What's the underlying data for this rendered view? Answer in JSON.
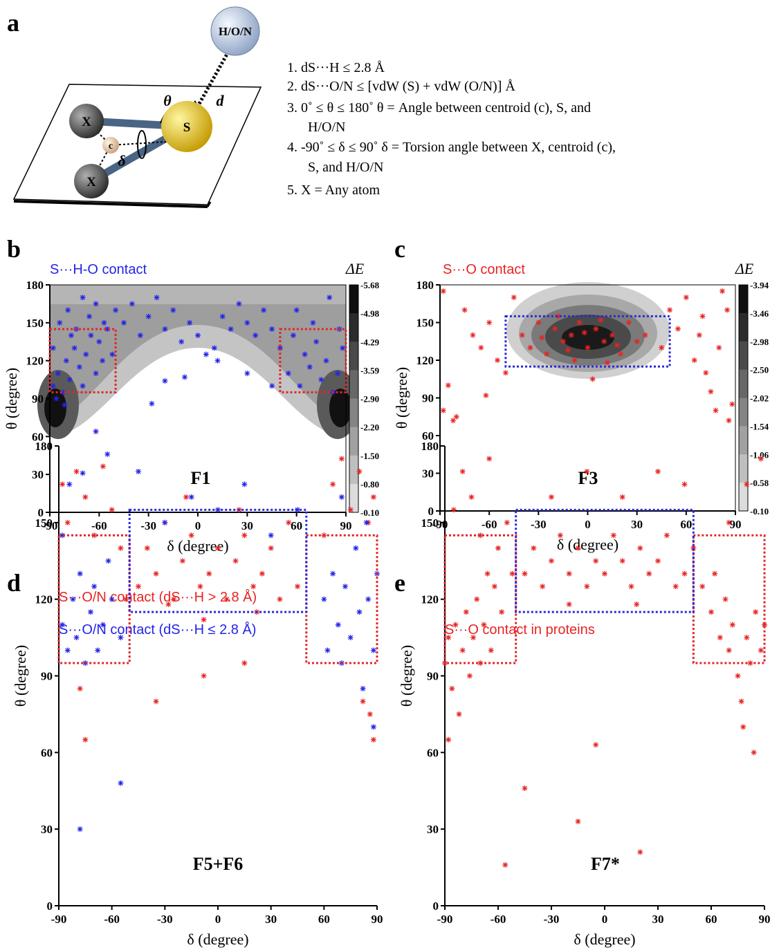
{
  "diagram": {
    "panel_label": "a",
    "atoms": [
      "H/O/N",
      "X",
      "X",
      "c",
      "S"
    ],
    "symbols": [
      "θ",
      "d",
      "δ"
    ],
    "criteria": [
      "1. dS···H ≤ 2.8 Å",
      "2. dS···O/N ≤ [vdW (S) + vdW (O/N)] Å",
      "3. 0˚ ≤ θ ≤ 180˚  θ = Angle between  centroid (c),  S, and",
      "H/O/N",
      "4. -90˚ ≤ δ ≤ 90˚  δ = Torsion angle  between X, centroid (c),",
      "S, and  H/O/N",
      "5. X = Any atom"
    ]
  },
  "chart_data": [
    {
      "type": "scatter",
      "panel_label": "b",
      "annotation": "F1",
      "xlabel": "δ (degree)",
      "ylabel": "θ (degree)",
      "xlim": [
        -90,
        90
      ],
      "ylim": [
        0,
        180
      ],
      "xticks": [
        -90,
        -60,
        -30,
        0,
        30,
        60,
        90
      ],
      "yticks": [
        0,
        30,
        60,
        90,
        120,
        150,
        180
      ],
      "colorbar": {
        "title": "ΔE",
        "levels": [
          -5.68,
          -4.98,
          -4.29,
          -3.59,
          {
            "value": -2.9,
            "label": "-2.90"
          },
          {
            "value": -2.2,
            "label": "-2.20"
          },
          {
            "value": -1.5,
            "label": "-1.50"
          },
          {
            "value": -0.8,
            "label": "-0.80"
          },
          {
            "value": -0.1,
            "label": "-0.10"
          }
        ]
      },
      "regions": [
        {
          "xlim": [
            -90,
            -50
          ],
          "ylim": [
            95,
            145
          ],
          "color": "#e0262b"
        },
        {
          "xlim": [
            50,
            90
          ],
          "ylim": [
            95,
            145
          ],
          "color": "#e0262b"
        }
      ],
      "series": [
        {
          "name": "S···H-O contact",
          "color": "#2323e8",
          "x": [
            -88,
            -85,
            -82,
            -80,
            -78,
            -75,
            -72,
            -70,
            -68,
            -65,
            -62,
            -60,
            -58,
            -55,
            -52,
            -88,
            -84,
            -79,
            -74,
            -70,
            -66,
            -62,
            -57,
            -86,
            -81,
            -77,
            -50,
            -45,
            -40,
            -35,
            -30,
            -25,
            -20,
            -15,
            -10,
            -5,
            0,
            5,
            10,
            15,
            20,
            25,
            30,
            35,
            40,
            45,
            50,
            55,
            58,
            62,
            65,
            68,
            72,
            75,
            78,
            82,
            85,
            88,
            60,
            70,
            80,
            86,
            -20,
            -8,
            12,
            -70,
            -62,
            -55,
            -28,
            30,
            45
          ],
          "values": [
            100,
            110,
            95,
            120,
            105,
            130,
            115,
            100,
            125,
            140,
            110,
            135,
            120,
            145,
            125,
            130,
            150,
            160,
            145,
            170,
            155,
            165,
            150,
            90,
            85,
            140,
            160,
            150,
            165,
            140,
            155,
            170,
            145,
            160,
            135,
            150,
            140,
            125,
            130,
            155,
            145,
            165,
            150,
            140,
            160,
            145,
            130,
            110,
            140,
            100,
            125,
            115,
            135,
            105,
            120,
            95,
            110,
            130,
            160,
            150,
            170,
            145,
            104,
            107,
            120,
            31,
            64,
            46,
            86,
            110,
            100
          ]
        }
      ]
    },
    {
      "type": "scatter",
      "panel_label": "c",
      "annotation": "F3",
      "xlabel": "δ (degree)",
      "ylabel": "θ (degree)",
      "xlim": [
        -90,
        90
      ],
      "ylim": [
        0,
        180
      ],
      "xticks": [
        -90,
        -60,
        -30,
        0,
        30,
        60,
        90
      ],
      "yticks": [
        0,
        30,
        60,
        90,
        120,
        150,
        180
      ],
      "colorbar": {
        "title": "ΔE",
        "levels": [
          -3.94,
          -3.46,
          -2.98,
          {
            "value": -2.5,
            "label": "-2.50"
          },
          -2.02,
          -1.54,
          -1.06,
          -0.58,
          {
            "value": -0.1,
            "label": "-0.10"
          }
        ]
      },
      "regions": [
        {
          "xlim": [
            -50,
            50
          ],
          "ylim": [
            115,
            155
          ],
          "color": "#2a2ad6"
        }
      ],
      "series": [
        {
          "name": "S···O contact",
          "color": "#e82323",
          "x": [
            -40,
            -35,
            -30,
            -25,
            -20,
            -15,
            -10,
            -5,
            0,
            5,
            10,
            15,
            20,
            25,
            30,
            35,
            -28,
            -12,
            -2,
            8,
            18,
            -18,
            12,
            -8,
            3,
            -88,
            -85,
            -82,
            -80,
            -75,
            -70,
            -65,
            -60,
            -62,
            -55,
            -50,
            -45,
            45,
            50,
            55,
            60,
            65,
            70,
            72,
            75,
            78,
            80,
            82,
            85,
            88,
            86,
            68,
            -88
          ],
          "values": [
            140,
            130,
            150,
            125,
            145,
            135,
            140,
            150,
            130,
            145,
            135,
            140,
            125,
            150,
            135,
            140,
            138,
            128,
            142,
            152,
            132,
            155,
            118,
            120,
            105,
            175,
            100,
            72,
            75,
            160,
            140,
            130,
            150,
            92,
            120,
            110,
            170,
            130,
            160,
            145,
            170,
            120,
            155,
            110,
            95,
            80,
            130,
            175,
            160,
            85,
            72,
            140,
            80
          ]
        }
      ]
    },
    {
      "type": "scatter",
      "panel_label": "d",
      "annotation": "F5+F6",
      "xlabel": "δ (degree)",
      "ylabel": "θ (degree)",
      "xlim": [
        -90,
        90
      ],
      "ylim": [
        0,
        180
      ],
      "xticks": [
        -90,
        -60,
        -30,
        0,
        30,
        60,
        90
      ],
      "yticks": [
        0,
        30,
        60,
        90,
        120,
        150,
        180
      ],
      "regions": [
        {
          "xlim": [
            -90,
            -50
          ],
          "ylim": [
            95,
            145
          ],
          "color": "#e0262b"
        },
        {
          "xlim": [
            50,
            90
          ],
          "ylim": [
            95,
            145
          ],
          "color": "#e0262b"
        },
        {
          "xlim": [
            -50,
            50
          ],
          "ylim": [
            115,
            155
          ],
          "color": "#2a2ad6"
        }
      ],
      "series": [
        {
          "name": "S···O/N contact (dS···H > 2.8 Å)",
          "color": "#e82323",
          "x": [
            -45,
            -40,
            -35,
            -30,
            -25,
            -20,
            -15,
            -10,
            -5,
            0,
            5,
            10,
            15,
            20,
            25,
            30,
            35,
            40,
            45,
            -28,
            -8,
            12,
            22,
            -18,
            -88,
            -85,
            -80,
            -75,
            -70,
            -65,
            -60,
            -55,
            -52,
            -78,
            -75,
            -35,
            -8,
            15,
            60,
            65,
            70,
            75,
            80,
            85,
            88,
            82,
            86,
            88
          ],
          "values": [
            125,
            140,
            130,
            150,
            120,
            135,
            145,
            125,
            130,
            140,
            120,
            135,
            145,
            125,
            130,
            140,
            120,
            150,
            125,
            118,
            112,
            155,
            115,
            160,
            165,
            150,
            170,
            160,
            145,
            172,
            155,
            140,
            120,
            85,
            65,
            80,
            90,
            95,
            145,
            165,
            175,
            155,
            170,
            150,
            160,
            80,
            75,
            65
          ]
        },
        {
          "name": "S···O/N contact (dS···H ≤ 2.8 Å)",
          "color": "#2323e8",
          "x": [
            -88,
            -85,
            -82,
            -80,
            -78,
            -75,
            -72,
            -70,
            -68,
            -65,
            -62,
            -60,
            -55,
            -88,
            -84,
            -78,
            -55,
            -45,
            -30,
            -15,
            0,
            15,
            30,
            45,
            60,
            62,
            65,
            68,
            70,
            72,
            75,
            78,
            80,
            82,
            85,
            88,
            90,
            84,
            70,
            88
          ],
          "values": [
            110,
            100,
            120,
            105,
            130,
            95,
            115,
            125,
            100,
            110,
            135,
            120,
            105,
            145,
            165,
            30,
            48,
            170,
            150,
            160,
            155,
            165,
            145,
            155,
            120,
            100,
            130,
            110,
            95,
            125,
            105,
            140,
            115,
            85,
            120,
            100,
            130,
            150,
            160,
            70
          ]
        }
      ]
    },
    {
      "type": "scatter",
      "panel_label": "e",
      "annotation": "F7*",
      "xlabel": "δ (degree)",
      "ylabel": "θ (degree)",
      "xlim": [
        -90,
        90
      ],
      "ylim": [
        0,
        180
      ],
      "xticks": [
        -90,
        -60,
        -30,
        0,
        30,
        60,
        90
      ],
      "yticks": [
        0,
        30,
        60,
        90,
        120,
        150,
        180
      ],
      "regions": [
        {
          "xlim": [
            -90,
            -50
          ],
          "ylim": [
            95,
            145
          ],
          "color": "#e0262b"
        },
        {
          "xlim": [
            50,
            90
          ],
          "ylim": [
            95,
            145
          ],
          "color": "#e0262b"
        },
        {
          "xlim": [
            -50,
            50
          ],
          "ylim": [
            115,
            155
          ],
          "color": "#2a2ad6"
        }
      ],
      "series": [
        {
          "name": "S···O contact in proteins",
          "color": "#e82323",
          "x": [
            -90,
            -88,
            -86,
            -84,
            -82,
            -80,
            -78,
            -76,
            -74,
            -72,
            -70,
            -68,
            -66,
            -64,
            -62,
            -60,
            -58,
            -55,
            -52,
            -88,
            -85,
            -80,
            -75,
            -70,
            -65,
            -45,
            -40,
            -35,
            -30,
            -25,
            -20,
            -15,
            -10,
            -5,
            0,
            5,
            10,
            15,
            20,
            25,
            30,
            35,
            40,
            45,
            -30,
            -10,
            10,
            30,
            45,
            -20,
            18,
            50,
            55,
            60,
            62,
            65,
            68,
            70,
            72,
            75,
            77,
            80,
            82,
            85,
            88,
            90,
            78,
            84,
            70,
            80,
            88,
            -56,
            -45,
            -15,
            -5,
            20
          ],
          "values": [
            95,
            105,
            85,
            110,
            75,
            100,
            115,
            90,
            105,
            120,
            95,
            110,
            130,
            100,
            125,
            140,
            115,
            150,
            130,
            65,
            155,
            170,
            160,
            145,
            175,
            130,
            140,
            125,
            135,
            145,
            130,
            140,
            125,
            135,
            130,
            145,
            135,
            125,
            140,
            130,
            135,
            145,
            125,
            130,
            160,
            170,
            160,
            170,
            165,
            118,
            118,
            140,
            125,
            115,
            130,
            105,
            120,
            100,
            110,
            90,
            80,
            105,
            95,
            115,
            100,
            110,
            70,
            60,
            150,
            165,
            175,
            16,
            46,
            33,
            63,
            21
          ]
        }
      ]
    }
  ]
}
